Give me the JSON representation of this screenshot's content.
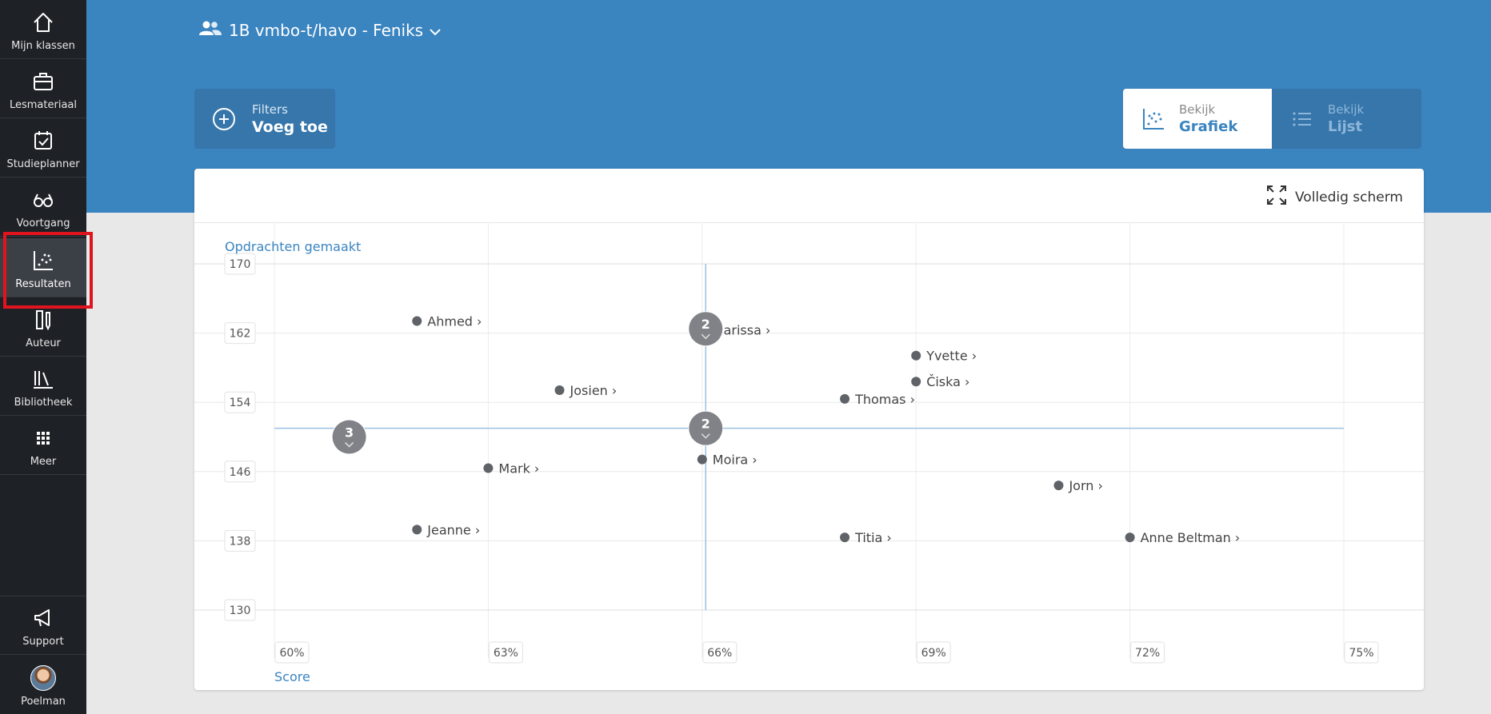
{
  "sidebar": {
    "items": [
      {
        "label": "Mijn klassen",
        "icon": "home-icon"
      },
      {
        "label": "Lesmateriaal",
        "icon": "briefcase-icon"
      },
      {
        "label": "Studieplanner",
        "icon": "calendar-check-icon"
      },
      {
        "label": "Voortgang",
        "icon": "glasses-icon"
      },
      {
        "label": "Resultaten",
        "icon": "scatter-chart-icon",
        "active": true
      },
      {
        "label": "Auteur",
        "icon": "ruler-pencil-icon"
      },
      {
        "label": "Bibliotheek",
        "icon": "books-icon"
      },
      {
        "label": "Meer",
        "icon": "grid-icon"
      }
    ],
    "support_label": "Support",
    "user_label": "Poelman"
  },
  "header": {
    "class_title": "1B vmbo-t/havo - Feniks",
    "filters_small": "Filters",
    "filters_big": "Voeg toe",
    "view_graph_small": "Bekijk",
    "view_graph_big": "Grafiek",
    "view_list_small": "Bekijk",
    "view_list_big": "Lijst"
  },
  "card": {
    "fullscreen_label": "Volledig scherm"
  },
  "colors": {
    "accent": "#3a84c0",
    "sidebar": "#1e2126",
    "point": "#5f6368",
    "active_outline": "#e0141e"
  },
  "chart_data": {
    "type": "scatter",
    "xlabel": "Score",
    "ylabel": "Opdrachten gemaakt",
    "x_unit": "%",
    "xlim": [
      60,
      75
    ],
    "ylim": [
      130,
      170
    ],
    "x_ticks": [
      60,
      63,
      66,
      69,
      72,
      75
    ],
    "y_ticks": [
      130,
      138,
      146,
      154,
      162,
      170
    ],
    "median": {
      "x": 66.05,
      "y": 151
    },
    "points": [
      {
        "name": "Ahmed",
        "x": 62,
        "y": 163.4
      },
      {
        "name": "Marissa",
        "x": 66,
        "y": 162.4
      },
      {
        "name": "Yvette",
        "x": 69,
        "y": 159.4
      },
      {
        "name": "Čiska",
        "x": 69,
        "y": 156.4
      },
      {
        "name": "Josien",
        "x": 64,
        "y": 155.4
      },
      {
        "name": "Thomas",
        "x": 68,
        "y": 154.4
      },
      {
        "name": "Mark",
        "x": 63,
        "y": 146.4
      },
      {
        "name": "Moira",
        "x": 66,
        "y": 147.4
      },
      {
        "name": "Jorn",
        "x": 71,
        "y": 144.4
      },
      {
        "name": "Jeanne",
        "x": 62,
        "y": 139.3
      },
      {
        "name": "Titia",
        "x": 68,
        "y": 138.4
      },
      {
        "name": "Anne Beltman",
        "x": 72,
        "y": 138.4
      }
    ],
    "clusters": [
      {
        "count": "2",
        "x": 66.05,
        "y": 162.5
      },
      {
        "count": "2",
        "x": 66.05,
        "y": 151
      },
      {
        "count": "3",
        "x": 61.05,
        "y": 150
      }
    ]
  }
}
